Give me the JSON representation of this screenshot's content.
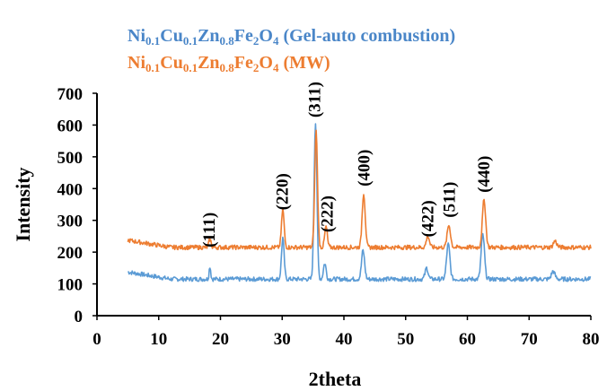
{
  "chart_data": {
    "type": "line",
    "xlabel": "2theta",
    "ylabel": "Intensity",
    "xlim": [
      0,
      80
    ],
    "ylim": [
      0,
      700
    ],
    "x_ticks": [
      "0",
      "10",
      "20",
      "30",
      "40",
      "50",
      "60",
      "70",
      "80"
    ],
    "y_ticks": [
      "0",
      "100",
      "200",
      "300",
      "400",
      "500",
      "600",
      "700"
    ],
    "grid": false,
    "legend_placement": "top-left",
    "legend": [
      {
        "parts": [
          {
            "t": "Ni",
            "sub": false
          },
          {
            "t": "0.1",
            "sub": true
          },
          {
            "t": "Cu",
            "sub": false
          },
          {
            "t": "0.1",
            "sub": true
          },
          {
            "t": "Zn",
            "sub": false
          },
          {
            "t": "0.8",
            "sub": true
          },
          {
            "t": "Fe",
            "sub": false
          },
          {
            "t": "2",
            "sub": true
          },
          {
            "t": "O",
            "sub": false
          },
          {
            "t": "4",
            "sub": true
          },
          {
            "t": "  (Gel-auto combustion)",
            "sub": false
          }
        ],
        "color": "#4a86c8"
      },
      {
        "parts": [
          {
            "t": "Ni",
            "sub": false
          },
          {
            "t": "0.1",
            "sub": true
          },
          {
            "t": "Cu",
            "sub": false
          },
          {
            "t": "0.1",
            "sub": true
          },
          {
            "t": "Zn",
            "sub": false
          },
          {
            "t": "0.8",
            "sub": true
          },
          {
            "t": "Fe",
            "sub": false
          },
          {
            "t": "2",
            "sub": true
          },
          {
            "t": "O",
            "sub": false
          },
          {
            "t": "4",
            "sub": true
          },
          {
            "t": "  (MW)",
            "sub": false
          }
        ],
        "color": "#ed7d31"
      }
    ],
    "series": [
      {
        "color": "#5b9bd5",
        "baseline": 115,
        "start": 5,
        "end": 80,
        "peaks": [
          {
            "x": 18.3,
            "h": 40,
            "w": 0.18
          },
          {
            "x": 30.1,
            "h": 130,
            "w": 0.3
          },
          {
            "x": 35.4,
            "h": 495,
            "w": 0.32
          },
          {
            "x": 36.9,
            "h": 50,
            "w": 0.3
          },
          {
            "x": 43.1,
            "h": 90,
            "w": 0.35
          },
          {
            "x": 53.4,
            "h": 35,
            "w": 0.35
          },
          {
            "x": 56.9,
            "h": 110,
            "w": 0.38
          },
          {
            "x": 62.5,
            "h": 140,
            "w": 0.38
          },
          {
            "x": 73.9,
            "h": 25,
            "w": 0.4
          }
        ]
      },
      {
        "color": "#ed7d31",
        "baseline": 215,
        "start": 5,
        "end": 80,
        "peaks": [
          {
            "x": 18.3,
            "h": 25,
            "w": 0.25
          },
          {
            "x": 30.1,
            "h": 120,
            "w": 0.3
          },
          {
            "x": 35.5,
            "h": 365,
            "w": 0.32
          },
          {
            "x": 37.1,
            "h": 65,
            "w": 0.3
          },
          {
            "x": 43.2,
            "h": 170,
            "w": 0.35
          },
          {
            "x": 53.6,
            "h": 35,
            "w": 0.35
          },
          {
            "x": 57.0,
            "h": 70,
            "w": 0.38
          },
          {
            "x": 62.7,
            "h": 150,
            "w": 0.38
          },
          {
            "x": 74.2,
            "h": 20,
            "w": 0.4
          }
        ]
      }
    ],
    "annotations": [
      {
        "text": "(111)",
        "x": 18.2,
        "y": 270
      },
      {
        "text": "(220)",
        "x": 30.0,
        "y": 390
      },
      {
        "text": "(311)",
        "x": 35.3,
        "y": 680
      },
      {
        "text": "(222)",
        "x": 37.3,
        "y": 320
      },
      {
        "text": "(400)",
        "x": 43.3,
        "y": 465
      },
      {
        "text": "(422)",
        "x": 53.6,
        "y": 305
      },
      {
        "text": "(511)",
        "x": 57.1,
        "y": 365
      },
      {
        "text": "(440)",
        "x": 62.7,
        "y": 445
      }
    ]
  }
}
